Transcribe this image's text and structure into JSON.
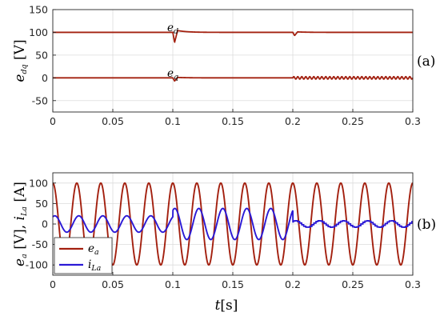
{
  "chart_data": [
    {
      "type": "line",
      "ylabel_main": "e",
      "ylabel_sub": "dq",
      "ylabel_unit": "[V]",
      "panel_tag": "(a)",
      "xlim": [
        0,
        0.3
      ],
      "ylim": [
        -75,
        150
      ],
      "grid": true,
      "x_ticks": [
        0,
        0.05,
        0.1,
        0.15,
        0.2,
        0.25,
        0.3
      ],
      "x_tick_labels": [
        "0",
        "0.05",
        "0.1",
        "0.15",
        "0.2",
        "0.25",
        "0.3"
      ],
      "y_ticks": [
        -50,
        0,
        50,
        100,
        150
      ],
      "y_tick_labels": [
        "-50",
        "0",
        "50",
        "100",
        "150"
      ],
      "series": [
        {
          "name": "e_d",
          "color": "#a3200f",
          "base": 100,
          "events": [
            {
              "t": 0.1,
              "shape": "dip",
              "min": 78,
              "max": 104
            },
            {
              "t": 0.2,
              "shape": "dip",
              "min": 93,
              "max": 101
            }
          ]
        },
        {
          "name": "e_q",
          "color": "#a3200f",
          "base": 0,
          "events": [
            {
              "t": 0.1,
              "shape": "dip",
              "min": -7,
              "max": 1
            },
            {
              "t": 0.2,
              "shape": "ripple",
              "min": -3,
              "max": 3
            }
          ]
        }
      ],
      "annotations": [
        {
          "main": "e",
          "sub": "d",
          "x": 0.05,
          "y": 111
        },
        {
          "main": "e",
          "sub": "q",
          "x": 0.05,
          "y": 11
        }
      ]
    },
    {
      "type": "line",
      "ylabel_parts": [
        {
          "main": "e",
          "sub": "a"
        },
        {
          "main": " [V], ",
          "sub": ""
        },
        {
          "main": "i",
          "sub": "La"
        },
        {
          "main": " [A]",
          "sub": ""
        }
      ],
      "xlabel_main": "t",
      "xlabel_unit": "[s]",
      "panel_tag": "(b)",
      "xlim": [
        0,
        0.3
      ],
      "ylim": [
        -125,
        125
      ],
      "grid": true,
      "x_ticks": [
        0,
        0.05,
        0.1,
        0.15,
        0.2,
        0.25,
        0.3
      ],
      "x_tick_labels": [
        "0",
        "0.05",
        "0.1",
        "0.15",
        "0.2",
        "0.25",
        "0.3"
      ],
      "y_ticks": [
        -100,
        -50,
        0,
        50,
        100
      ],
      "y_tick_labels": [
        "-100",
        "-50",
        "0",
        "50",
        "100"
      ],
      "series": [
        {
          "name": "e_a",
          "legend_main": "e",
          "legend_sub": "a",
          "color": "#a3200f",
          "amplitude": 100,
          "frequency_hz": 50,
          "phase_deg": 90
        },
        {
          "name": "i_La",
          "legend_main": "i",
          "legend_sub": "La",
          "color": "#2b1ad6",
          "segments": [
            {
              "t0": 0.0,
              "t1": 0.1,
              "amplitude": 20,
              "phase_deg": 60
            },
            {
              "t0": 0.1,
              "t1": 0.2,
              "amplitude": 38,
              "phase_deg": 60
            },
            {
              "t0": 0.2,
              "t1": 0.3,
              "amplitude": 8,
              "phase_deg": 60,
              "stepped": true
            }
          ],
          "frequency_hz": 50
        }
      ],
      "legend_position": "bottom-left"
    }
  ]
}
